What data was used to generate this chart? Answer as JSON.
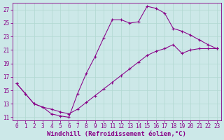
{
  "xlabel": "Windchill (Refroidissement éolien,°C)",
  "bg_color": "#cce8e8",
  "line_color": "#880088",
  "marker": "+",
  "xlim": [
    -0.5,
    23.5
  ],
  "ylim": [
    10.5,
    28.0
  ],
  "xticks": [
    0,
    1,
    2,
    3,
    4,
    5,
    6,
    7,
    8,
    9,
    10,
    11,
    12,
    13,
    14,
    15,
    16,
    17,
    18,
    19,
    20,
    21,
    22,
    23
  ],
  "yticks": [
    11,
    13,
    15,
    17,
    19,
    21,
    23,
    25,
    27
  ],
  "grid_color": "#b0d8d0",
  "tick_labelsize": 5.5,
  "xlabel_fontsize": 6.5,
  "series": [
    {
      "x": [
        0,
        1,
        2,
        3,
        4,
        5,
        6,
        7,
        8,
        9,
        10,
        11,
        12,
        13,
        14,
        15,
        16,
        17,
        18,
        19,
        20,
        21,
        22,
        23
      ],
      "y": [
        16,
        14.5,
        13,
        12.5,
        11.5,
        11.2,
        11.0,
        14.5,
        17.5,
        20.0,
        22.8,
        25.5,
        25.5,
        25.0,
        25.2,
        27.5,
        27.2,
        26.5,
        24.2,
        23.8,
        23.2,
        22.5,
        21.8,
        21.2
      ]
    },
    {
      "x": [
        0,
        1,
        2,
        3,
        4,
        5,
        6,
        7,
        8,
        9,
        10,
        11,
        12,
        13,
        14,
        15,
        16,
        17,
        18,
        19,
        20,
        21,
        22,
        23
      ],
      "y": [
        16,
        14.5,
        13,
        12.5,
        12.2,
        11.8,
        11.5,
        12.2,
        13.2,
        14.2,
        15.2,
        16.2,
        17.2,
        18.2,
        19.2,
        20.2,
        20.8,
        21.2,
        21.8,
        20.5,
        21.0,
        21.2,
        21.2,
        21.2
      ]
    }
  ]
}
